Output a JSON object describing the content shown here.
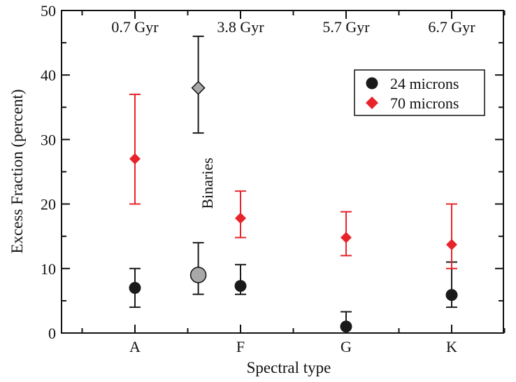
{
  "chart_data": {
    "type": "scatter",
    "xlabel": "Spectral type",
    "ylabel": "Excess Fraction (percent)",
    "categories": [
      "A",
      "F",
      "G",
      "K"
    ],
    "ylim": [
      0,
      50
    ],
    "yticks": [
      "0",
      "10",
      "20",
      "30",
      "40",
      "50"
    ],
    "ages": [
      "0.7 Gyr",
      "3.8 Gyr",
      "5.7 Gyr",
      "6.7 Gyr"
    ],
    "annotation": "Binaries",
    "legend": {
      "placement": "top-right",
      "entries": [
        "24 microns",
        "70 microns"
      ]
    },
    "series": [
      {
        "name": "24 microns",
        "marker": "circle",
        "color": "#1a1a1a",
        "points": [
          {
            "x": 1.0,
            "y": 7.0,
            "lo": 4.0,
            "hi": 10.0
          },
          {
            "x": 2.0,
            "y": 7.3,
            "lo": 6.0,
            "hi": 10.6
          },
          {
            "x": 3.0,
            "y": 1.0,
            "lo": 0.0,
            "hi": 3.3
          },
          {
            "x": 4.0,
            "y": 5.9,
            "lo": 4.0,
            "hi": 11.0
          }
        ]
      },
      {
        "name": "70 microns",
        "marker": "diamond",
        "color": "#e8242b",
        "points": [
          {
            "x": 1.0,
            "y": 27.0,
            "lo": 20.0,
            "hi": 37.0
          },
          {
            "x": 2.0,
            "y": 17.8,
            "lo": 14.8,
            "hi": 22.0
          },
          {
            "x": 3.0,
            "y": 14.8,
            "lo": 12.0,
            "hi": 18.8
          },
          {
            "x": 4.0,
            "y": 13.7,
            "lo": 10.0,
            "hi": 20.0
          }
        ]
      },
      {
        "name": "Binaries 24 microns",
        "marker": "circle",
        "color": "#a8a8a8",
        "points": [
          {
            "x": 1.6,
            "y": 9.0,
            "lo": 6.0,
            "hi": 14.0
          }
        ]
      },
      {
        "name": "Binaries 70 microns",
        "marker": "diamond",
        "color": "#a8a8a8",
        "points": [
          {
            "x": 1.6,
            "y": 38.0,
            "lo": 31.0,
            "hi": 46.0
          }
        ]
      }
    ]
  }
}
